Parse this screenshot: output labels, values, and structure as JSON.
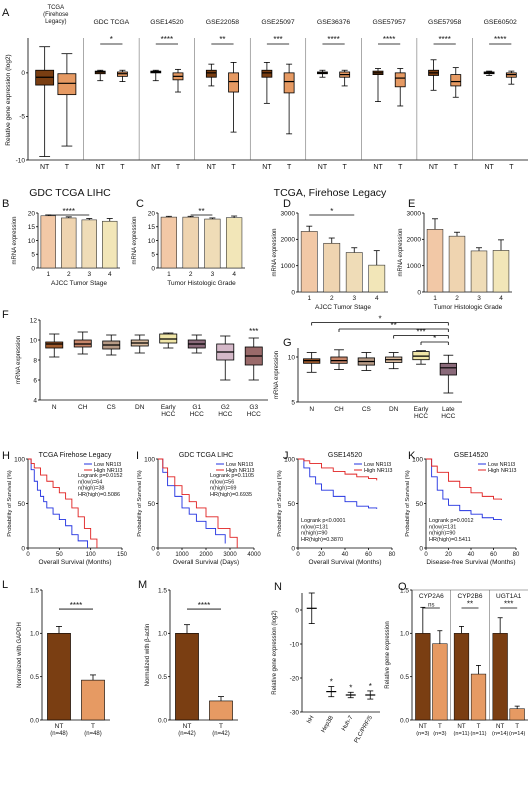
{
  "colors": {
    "nt": "#7a3e12",
    "t": "#e69a63",
    "high": "#e02020",
    "low": "#2030e0",
    "stage": [
      "#f2c8a6",
      "#efd4b0",
      "#efdcb7",
      "#f2e6b8"
    ],
    "liver": [
      "#a05a2c",
      "#c7866a",
      "#b69a85",
      "#d7b99d",
      "#f0e6a8",
      "#8a6a7a",
      "#d4b8c8",
      "#9a6a6a"
    ]
  },
  "panel_letters": {
    "A": "A",
    "B": "B",
    "C": "C",
    "D": "D",
    "E": "E",
    "F": "F",
    "G": "G",
    "H": "H",
    "I": "I",
    "J": "J",
    "K": "K",
    "L": "L",
    "M": "M",
    "N": "N",
    "O": "O"
  },
  "headings": {
    "gdc": "GDC TCGA LIHC",
    "firehose": "TCGA, Firehose Legacy"
  },
  "chart_data": [
    {
      "panel": "A",
      "type": "box",
      "ylabel": "Relative gene expression (log2)",
      "ylim": [
        -10,
        4
      ],
      "yticks": [
        "0",
        "-5",
        "-10"
      ],
      "groups": [
        {
          "title": "TCGA (Firehose Legacy)",
          "sig": "",
          "NT": [
            -9.6,
            -1.4,
            -0.5,
            0.3,
            3.0
          ],
          "T": [
            -8.4,
            -2.5,
            -1.2,
            -0.1,
            2.2
          ]
        },
        {
          "title": "GDC TCGA",
          "sig": "*",
          "NT": [
            -0.9,
            -0.1,
            0.1,
            0.2,
            0.3
          ],
          "T": [
            -1.0,
            -0.4,
            -0.1,
            0.1,
            0.3
          ]
        },
        {
          "title": "GSE14520",
          "sig": "****",
          "NT": [
            -0.9,
            0.0,
            0.1,
            0.2,
            0.3
          ],
          "T": [
            -2.2,
            -0.8,
            -0.4,
            0.0,
            0.4
          ]
        },
        {
          "title": "GSE22058",
          "sig": "**",
          "NT": [
            -1.5,
            -0.5,
            0.0,
            0.3,
            1.0
          ],
          "T": [
            -6.8,
            -2.2,
            -1.0,
            0.0,
            1.2
          ]
        },
        {
          "title": "GSE25097",
          "sig": "***",
          "NT": [
            -3.5,
            -0.5,
            0.0,
            0.3,
            1.2
          ],
          "T": [
            -7.0,
            -2.3,
            -1.0,
            0.0,
            1.0
          ]
        },
        {
          "title": "GSE36376",
          "sig": "****",
          "NT": [
            -0.5,
            -0.1,
            0.0,
            0.1,
            0.3
          ],
          "T": [
            -1.5,
            -0.5,
            -0.2,
            0.1,
            0.3
          ]
        },
        {
          "title": "GSE57957",
          "sig": "****",
          "NT": [
            -3.3,
            -0.2,
            0.0,
            0.2,
            0.5
          ],
          "T": [
            -3.8,
            -1.6,
            -0.6,
            0.0,
            0.5
          ]
        },
        {
          "title": "GSE57958",
          "sig": "****",
          "NT": [
            -2.0,
            -0.3,
            0.0,
            0.3,
            1.5
          ],
          "T": [
            -2.8,
            -1.5,
            -1.0,
            -0.2,
            0.6
          ]
        },
        {
          "title": "GSE60502",
          "sig": "****",
          "NT": [
            -0.3,
            -0.1,
            0.0,
            0.1,
            0.2
          ],
          "T": [
            -1.3,
            -0.5,
            -0.2,
            0.0,
            0.2
          ]
        }
      ],
      "xlabels": [
        "NT",
        "T"
      ]
    },
    {
      "panel": "B",
      "type": "bar",
      "categories": [
        "1",
        "2",
        "3",
        "4"
      ],
      "values": [
        19,
        18.2,
        17.5,
        17
      ],
      "errors": [
        0.3,
        0.4,
        0.5,
        1.0
      ],
      "xlabel": "AJCC Tumor Stage",
      "ylabel": "mRNA expression",
      "ylim": [
        0,
        20
      ],
      "yticks": [
        "0",
        "5",
        "10",
        "15",
        "20"
      ],
      "sig": "****",
      "sig_pair": [
        0,
        2
      ]
    },
    {
      "panel": "C",
      "type": "bar",
      "categories": [
        "1",
        "2",
        "3",
        "4"
      ],
      "values": [
        18.5,
        18.5,
        17.8,
        18.3
      ],
      "errors": [
        0.3,
        0.3,
        0.4,
        0.6
      ],
      "xlabel": "Tumor Histologic Grade",
      "ylabel": "mRNA expression",
      "ylim": [
        0,
        20
      ],
      "yticks": [
        "0",
        "5",
        "10",
        "15",
        "20"
      ],
      "sig": "**",
      "sig_pair": [
        1,
        2
      ]
    },
    {
      "panel": "D",
      "type": "bar",
      "categories": [
        "1",
        "2",
        "3",
        "4"
      ],
      "values": [
        2300,
        1850,
        1500,
        1020
      ],
      "errors": [
        200,
        200,
        180,
        550
      ],
      "xlabel": "AJCC Tumor Stage",
      "ylabel": "mRNA expression",
      "ylim": [
        0,
        3000
      ],
      "yticks": [
        "0",
        "1000",
        "2000",
        "3000"
      ],
      "sig": "*",
      "sig_pair": [
        0,
        2
      ]
    },
    {
      "panel": "E",
      "type": "bar",
      "categories": [
        "1",
        "2",
        "3",
        "4"
      ],
      "values": [
        2380,
        2120,
        1560,
        1580
      ],
      "errors": [
        400,
        150,
        120,
        400
      ],
      "xlabel": "Tumor Histologic Grade",
      "ylabel": "mRNA expression",
      "ylim": [
        0,
        3000
      ],
      "yticks": [
        "0",
        "1000",
        "2000",
        "3000"
      ],
      "sig": "",
      "sig_pair": null
    },
    {
      "panel": "F",
      "type": "box",
      "ylabel": "mRNA expression",
      "ylim": [
        4,
        12
      ],
      "yticks": [
        "4",
        "6",
        "8",
        "10",
        "12"
      ],
      "categories": [
        "N",
        "CH",
        "CS",
        "DN",
        "Early HCC",
        "G1 HCC",
        "G2 HCC",
        "G3 HCC"
      ],
      "boxes": [
        [
          8.3,
          9.2,
          9.6,
          9.8,
          10.6
        ],
        [
          8.6,
          9.3,
          9.6,
          10.0,
          10.8
        ],
        [
          8.5,
          9.1,
          9.5,
          9.9,
          10.5
        ],
        [
          8.7,
          9.4,
          9.7,
          10.0,
          10.5
        ],
        [
          9.2,
          9.7,
          10.1,
          10.6,
          10.7
        ],
        [
          8.7,
          9.2,
          9.6,
          10.0,
          10.5
        ],
        [
          6.0,
          8.0,
          8.8,
          9.6,
          10.4
        ],
        [
          6.0,
          7.5,
          8.4,
          9.3,
          10.2
        ]
      ],
      "sig": "***"
    },
    {
      "panel": "G",
      "type": "box",
      "ylabel": "mRNA expression",
      "ylim": [
        5,
        11
      ],
      "yticks": [
        "5",
        "10"
      ],
      "categories": [
        "N",
        "CH",
        "CS",
        "DN",
        "Early HCC",
        "Late HCC"
      ],
      "boxes": [
        [
          8.3,
          9.3,
          9.6,
          9.8,
          10.5
        ],
        [
          8.6,
          9.3,
          9.6,
          10.0,
          10.8
        ],
        [
          8.5,
          9.1,
          9.5,
          9.9,
          10.5
        ],
        [
          8.7,
          9.4,
          9.7,
          10.0,
          10.5
        ],
        [
          9.2,
          9.7,
          10.1,
          10.6,
          10.7
        ],
        [
          6.0,
          8.0,
          8.8,
          9.3,
          10.2
        ]
      ],
      "sig_brackets": [
        {
          "from": 0,
          "sig": "*"
        },
        {
          "from": 1,
          "sig": "**"
        },
        {
          "from": 3,
          "sig": "***"
        },
        {
          "from": 4,
          "sig": "*"
        }
      ]
    },
    {
      "panel": "H",
      "type": "line",
      "title": "TCGA Firehose Legacy",
      "xlabel": "Overall Survival (Months)",
      "ylabel": "Probability of Survival (%)",
      "xlim": [
        0,
        150
      ],
      "xticks": [
        "0",
        "50",
        "100",
        "150"
      ],
      "yticks": [
        "0",
        "50",
        "100"
      ],
      "legend": [
        "Low NR1I3",
        "High NR1I3"
      ],
      "stats": [
        "Logrank p=0.0152",
        "n(low)=64",
        "n(high)=38",
        "HR(high)=0.5086"
      ],
      "series": [
        {
          "name": "Low NR1I3",
          "x": [
            0,
            5,
            10,
            15,
            20,
            25,
            30,
            40,
            50,
            60,
            70,
            80,
            95
          ],
          "y": [
            100,
            88,
            75,
            65,
            58,
            52,
            45,
            38,
            32,
            25,
            15,
            8,
            0
          ]
        },
        {
          "name": "High NR1I3",
          "x": [
            0,
            5,
            10,
            20,
            30,
            40,
            50,
            60,
            70,
            80,
            90,
            100,
            110
          ],
          "y": [
            100,
            95,
            90,
            82,
            75,
            68,
            62,
            55,
            45,
            35,
            22,
            10,
            0
          ]
        }
      ]
    },
    {
      "panel": "I",
      "type": "line",
      "title": "GDC TCGA LIHC",
      "xlabel": "Overall Survival (Days)",
      "ylabel": "Probability of Survival (%)",
      "xlim": [
        0,
        4000
      ],
      "xticks": [
        "0",
        "1000",
        "2000",
        "3000",
        "4000"
      ],
      "yticks": [
        "0",
        "50",
        "100"
      ],
      "legend": [
        "Low NR1I3",
        "High NR1I3"
      ],
      "stats": [
        "Logrank p=0.1105",
        "n(low)=56",
        "n(high)=69",
        "HR(high)=0.6935"
      ],
      "series": [
        {
          "name": "Low NR1I3",
          "x": [
            0,
            200,
            400,
            700,
            1000,
            1300,
            1600,
            2000,
            2400,
            2800
          ],
          "y": [
            100,
            85,
            70,
            58,
            45,
            38,
            30,
            22,
            15,
            5
          ]
        },
        {
          "name": "High NR1I3",
          "x": [
            0,
            200,
            400,
            700,
            1000,
            1300,
            1600,
            2000,
            2500,
            3000,
            3300
          ],
          "y": [
            100,
            90,
            80,
            70,
            60,
            52,
            45,
            35,
            22,
            12,
            0
          ]
        }
      ]
    },
    {
      "panel": "J",
      "type": "line",
      "title": "GSE14520",
      "xlabel": "Overall Survival (Months)",
      "ylabel": "Probability of Survival (%)",
      "xlim": [
        0,
        80
      ],
      "xticks": [
        "0",
        "20",
        "40",
        "60",
        "80"
      ],
      "yticks": [
        "0",
        "50",
        "100"
      ],
      "legend": [
        "Low NR1I3",
        "High NR1I3"
      ],
      "stats": [
        "Logrank p<0.0001",
        "n(low)=131",
        "n(high)=90",
        "HR(high)=0.3870"
      ],
      "series": [
        {
          "name": "Low NR1I3",
          "x": [
            0,
            5,
            10,
            15,
            20,
            30,
            40,
            50,
            60,
            67
          ],
          "y": [
            100,
            90,
            80,
            72,
            65,
            58,
            52,
            47,
            45,
            44
          ]
        },
        {
          "name": "High NR1I3",
          "x": [
            0,
            5,
            10,
            20,
            30,
            40,
            50,
            60,
            67
          ],
          "y": [
            100,
            98,
            95,
            90,
            86,
            83,
            80,
            78,
            76
          ]
        }
      ]
    },
    {
      "panel": "K",
      "type": "line",
      "title": "GSE14520",
      "xlabel": "Disease-free Survival (Months)",
      "ylabel": "Probability of Survival (%)",
      "xlim": [
        0,
        80
      ],
      "xticks": [
        "0",
        "20",
        "40",
        "60",
        "80"
      ],
      "yticks": [
        "0",
        "50",
        "100"
      ],
      "legend": [
        "Low NR1I3",
        "High NR1I3"
      ],
      "stats": [
        "Logrank p=0.0012",
        "n(low)=131",
        "n(high)=90",
        "HR(high)=0.5411"
      ],
      "series": [
        {
          "name": "Low NR1I3",
          "x": [
            0,
            5,
            10,
            15,
            20,
            30,
            40,
            50,
            60,
            67
          ],
          "y": [
            100,
            80,
            65,
            55,
            48,
            42,
            38,
            34,
            32,
            31
          ]
        },
        {
          "name": "High NR1I3",
          "x": [
            0,
            5,
            10,
            20,
            30,
            40,
            50,
            60,
            67
          ],
          "y": [
            100,
            92,
            85,
            75,
            68,
            62,
            58,
            55,
            54
          ]
        }
      ]
    },
    {
      "panel": "L",
      "type": "bar",
      "categories": [
        "NT",
        "T"
      ],
      "sublabels": [
        "(n=48)",
        "(n=48)"
      ],
      "values": [
        1.0,
        0.46
      ],
      "errors": [
        0.08,
        0.06
      ],
      "ylabel": "Normalized with GAPDH",
      "ylim": [
        0,
        1.5
      ],
      "yticks": [
        "0.0",
        "0.5",
        "1.0",
        "1.5"
      ],
      "sig": "****"
    },
    {
      "panel": "M",
      "type": "bar",
      "categories": [
        "NT",
        "T"
      ],
      "sublabels": [
        "(n=42)",
        "(n=42)"
      ],
      "values": [
        1.0,
        0.22
      ],
      "errors": [
        0.1,
        0.05
      ],
      "ylabel": "Normalized with β-actin",
      "ylim": [
        0,
        1.5
      ],
      "yticks": [
        "0.0",
        "0.5",
        "1.0",
        "1.5"
      ],
      "sig": "****"
    },
    {
      "panel": "N",
      "type": "scatter",
      "categories": [
        "hH",
        "Hep3B",
        "Huh-7",
        "PLC/PRF/5"
      ],
      "values": [
        0.5,
        -24,
        -25,
        -25
      ],
      "errors": [
        4.5,
        1.5,
        0.8,
        1.2
      ],
      "ylabel": "Relative gene expression (log2)",
      "ylim": [
        -30,
        5
      ],
      "yticks": [
        "0",
        "-10",
        "-20",
        "-30"
      ],
      "sigs": [
        "",
        "*",
        "*",
        "*"
      ]
    },
    {
      "panel": "O",
      "type": "bar",
      "ylabel": "Relative gene expression",
      "ylim": [
        0,
        1.5
      ],
      "yticks": [
        "0.0",
        "0.5",
        "1.0",
        "1.5"
      ],
      "groups": [
        {
          "title": "CYP2A6",
          "sig": "ns",
          "values": [
            1.0,
            0.88
          ],
          "errors": [
            0.3,
            0.15
          ],
          "labels": [
            "NT",
            "T"
          ],
          "sublabels": [
            "(n=3)",
            "(n=3)"
          ]
        },
        {
          "title": "CYP2B6",
          "sig": "**",
          "values": [
            1.0,
            0.53
          ],
          "errors": [
            0.08,
            0.1
          ],
          "labels": [
            "NT",
            "T"
          ],
          "sublabels": [
            "(n=11)",
            "(n=11)"
          ]
        },
        {
          "title": "UGT1A1",
          "sig": "***",
          "values": [
            1.0,
            0.13
          ],
          "errors": [
            0.18,
            0.03
          ],
          "labels": [
            "NT",
            "T"
          ],
          "sublabels": [
            "(n=14)",
            "(n=14)"
          ]
        }
      ]
    }
  ]
}
